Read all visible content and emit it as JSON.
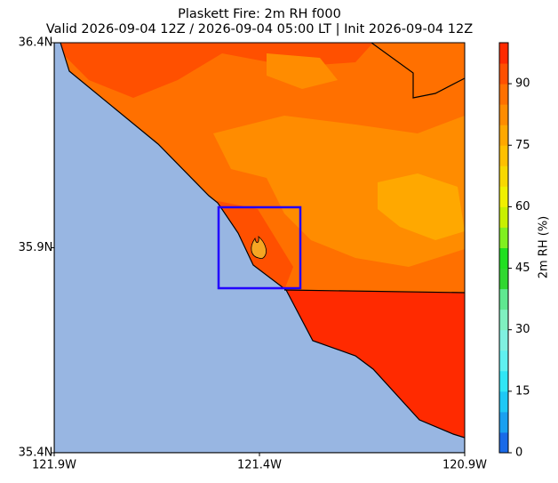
{
  "chart_data": {
    "type": "map",
    "title": "Plaskett Fire: 2m RH f000",
    "subtitle": "Valid 2026-09-04 12Z / 2026-09-04 05:00 LT | Init 2026-09-04 12Z",
    "xlim": [
      -121.9,
      -120.9
    ],
    "xticks": [
      {
        "value": -121.9,
        "label": "121.9W"
      },
      {
        "value": -121.4,
        "label": "121.4W"
      },
      {
        "value": -120.9,
        "label": "120.9W"
      }
    ],
    "ylim": [
      35.4,
      36.4
    ],
    "yticks": [
      {
        "value": 35.4,
        "label": "35.4N"
      },
      {
        "value": 35.9,
        "label": "35.9N"
      },
      {
        "value": 36.4,
        "label": "36.4N"
      }
    ],
    "colorbar": {
      "label": "2m RH (%)",
      "lim": [
        0,
        100
      ],
      "ticks": [
        0,
        15,
        30,
        45,
        60,
        75,
        90
      ],
      "colors": [
        "#1a6ae8",
        "#1aa0f0",
        "#1ec8f5",
        "#30e6f5",
        "#60f0f0",
        "#80f0e0",
        "#80f0c0",
        "#60e890",
        "#30d830",
        "#20e020",
        "#80f020",
        "#c8f000",
        "#f0f000",
        "#f8d800",
        "#ffc000",
        "#ffa800",
        "#ff8c00",
        "#ff7000",
        "#ff5000",
        "#ff2a00"
      ]
    }
  }
}
